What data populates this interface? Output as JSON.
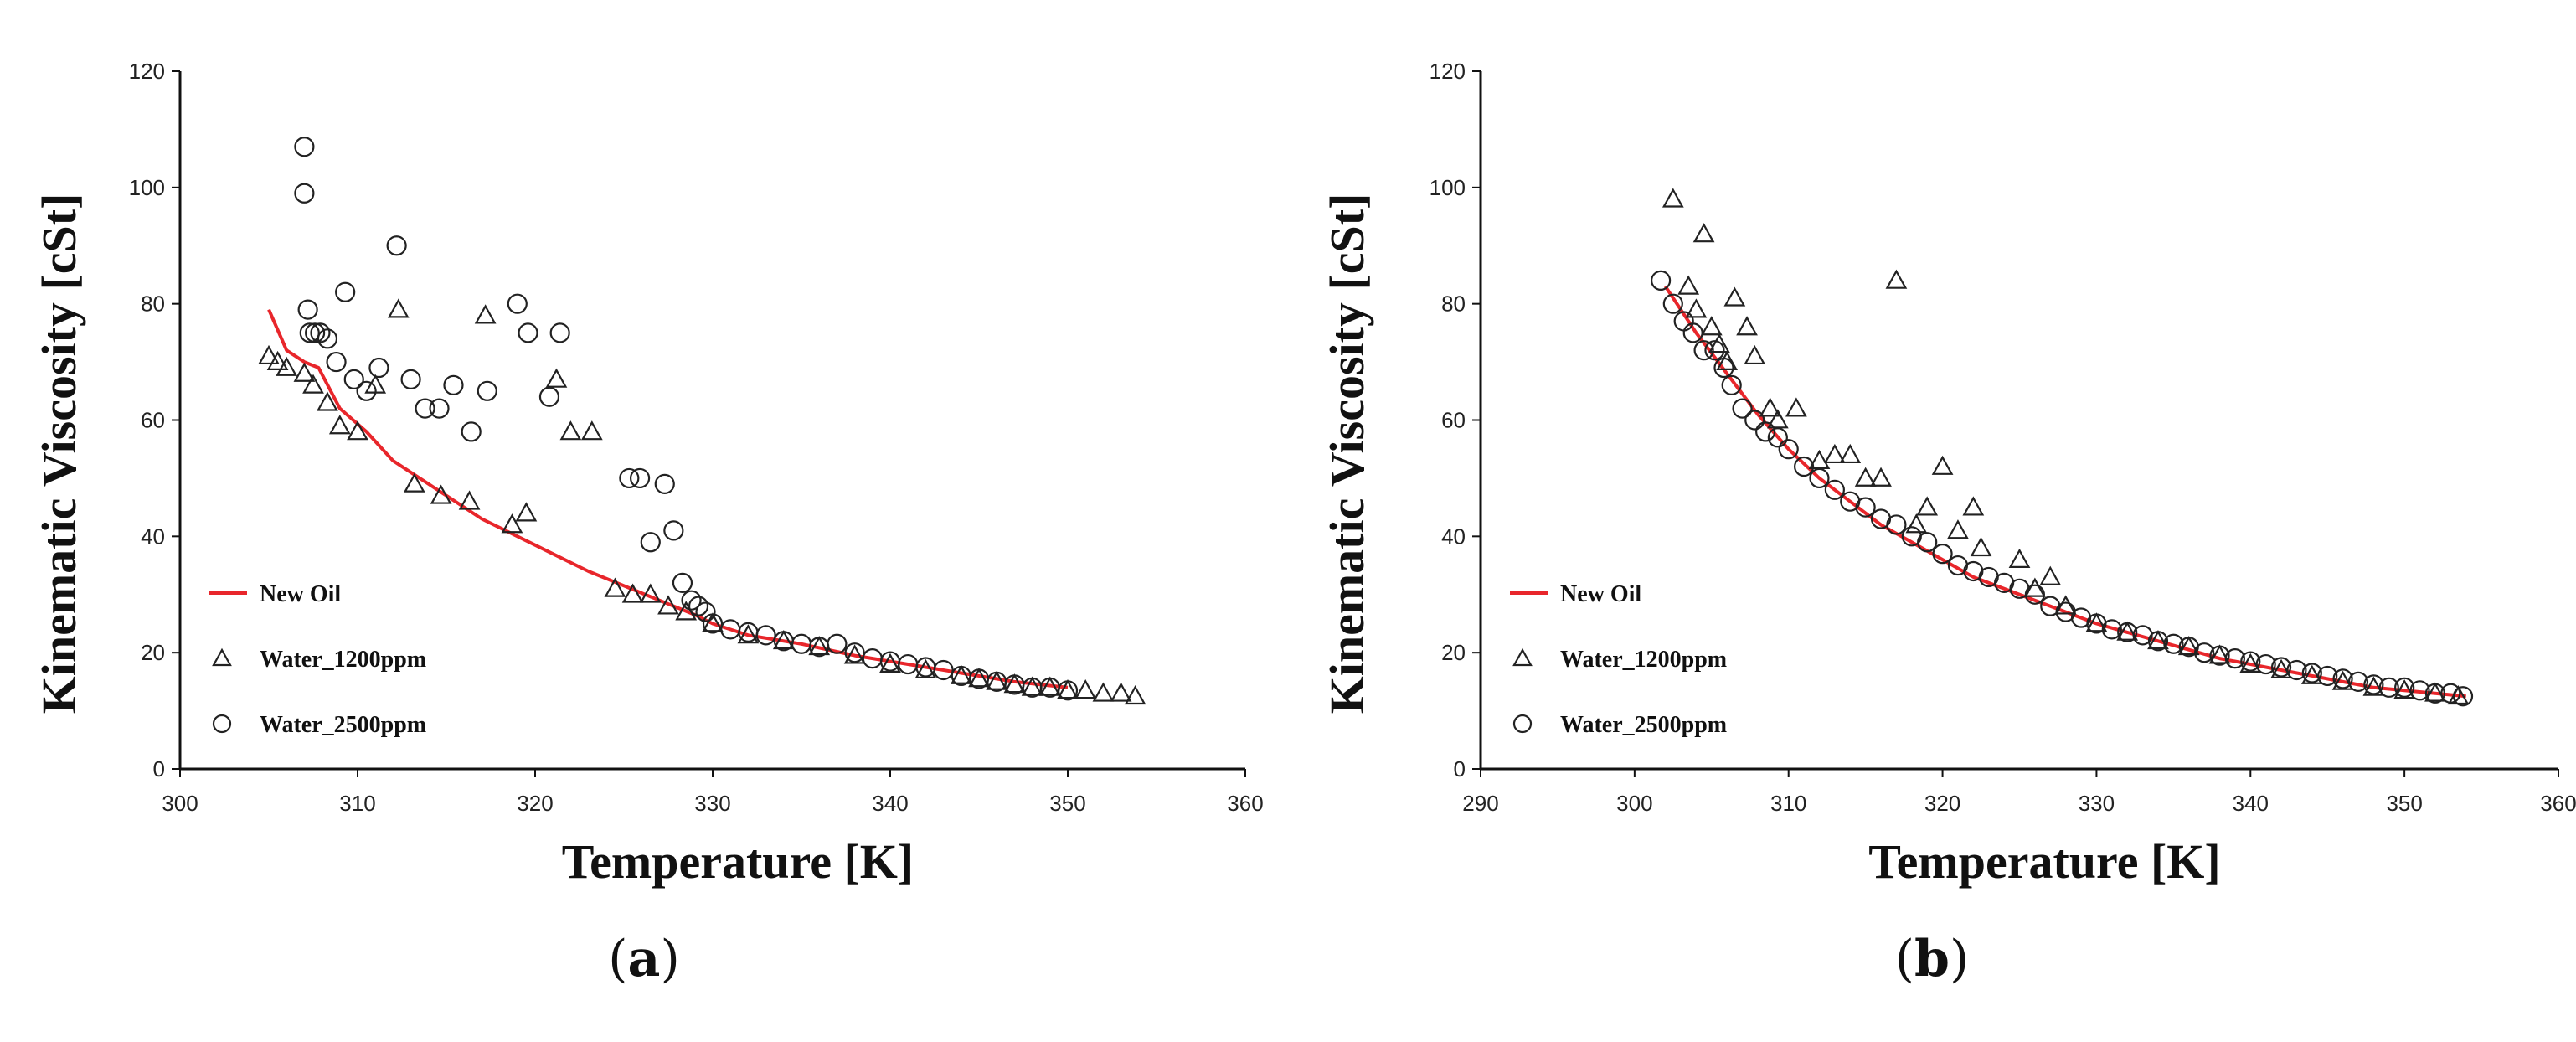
{
  "captions": {
    "a_letter": "a",
    "b_letter": "b",
    "open": "(",
    "close": ")"
  },
  "chart_data": [
    {
      "id": "a",
      "type": "scatter",
      "xlabel": "Temperature [K]",
      "ylabel": "Kinematic Viscosity [cSt]",
      "xlim": [
        300,
        360
      ],
      "ylim": [
        0,
        120
      ],
      "xticks": [
        "300",
        "310",
        "320",
        "330",
        "340",
        "350",
        "360"
      ],
      "yticks": [
        "0",
        "20",
        "40",
        "60",
        "80",
        "100",
        "120"
      ],
      "legend_position": "left-bottom",
      "series": [
        {
          "name": "New Oil",
          "marker": "line",
          "color": "#e8262b",
          "points": [
            [
              305.0,
              79
            ],
            [
              306.0,
              72
            ],
            [
              307.0,
              70
            ],
            [
              307.8,
              69
            ],
            [
              309,
              62
            ],
            [
              310.5,
              58
            ],
            [
              312,
              53
            ],
            [
              313.5,
              50
            ],
            [
              315,
              47
            ],
            [
              317,
              43
            ],
            [
              319,
              40
            ],
            [
              321,
              37
            ],
            [
              323,
              34
            ],
            [
              325,
              31.5
            ],
            [
              327,
              29
            ],
            [
              329,
              26.5
            ],
            [
              330,
              25
            ],
            [
              332,
              23
            ],
            [
              335,
              21.5
            ],
            [
              338,
              19.5
            ],
            [
              341,
              18
            ],
            [
              344,
              16.5
            ],
            [
              347,
              15
            ],
            [
              350,
              14
            ]
          ]
        },
        {
          "name": "Water_1200ppm",
          "marker": "triangle",
          "color": "#222222",
          "points": [
            [
              305,
              71
            ],
            [
              305.5,
              70
            ],
            [
              306,
              69
            ],
            [
              307,
              68
            ],
            [
              307.5,
              66
            ],
            [
              308.3,
              63
            ],
            [
              309,
              59
            ],
            [
              310,
              58
            ],
            [
              311,
              66
            ],
            [
              312.3,
              79
            ],
            [
              313.2,
              49
            ],
            [
              314.7,
              47
            ],
            [
              316.3,
              46
            ],
            [
              317.2,
              78
            ],
            [
              318.7,
              42
            ],
            [
              319.5,
              44
            ],
            [
              321.2,
              67
            ],
            [
              322,
              58
            ],
            [
              323.2,
              58
            ],
            [
              324.5,
              31
            ],
            [
              325.5,
              30
            ],
            [
              326.5,
              30
            ],
            [
              327.5,
              28
            ],
            [
              328.5,
              27
            ],
            [
              330,
              25
            ],
            [
              332,
              23
            ],
            [
              334,
              22
            ],
            [
              336,
              21
            ],
            [
              338,
              19.5
            ],
            [
              340,
              18
            ],
            [
              342,
              17
            ],
            [
              344,
              16
            ],
            [
              345,
              15.5
            ],
            [
              346,
              15
            ],
            [
              347,
              14.5
            ],
            [
              348,
              14
            ],
            [
              349,
              14
            ],
            [
              350,
              13.5
            ],
            [
              351,
              13.5
            ],
            [
              352,
              13
            ],
            [
              353,
              13
            ],
            [
              353.8,
              12.5
            ]
          ]
        },
        {
          "name": "Water_2500ppm",
          "marker": "circle",
          "color": "#222222",
          "points": [
            [
              307,
              107
            ],
            [
              307,
              99
            ],
            [
              307.2,
              79
            ],
            [
              307.3,
              75
            ],
            [
              307.6,
              75
            ],
            [
              307.9,
              75
            ],
            [
              308.3,
              74
            ],
            [
              308.8,
              70
            ],
            [
              309.3,
              82
            ],
            [
              309.8,
              67
            ],
            [
              310.5,
              65
            ],
            [
              311.2,
              69
            ],
            [
              312.2,
              90
            ],
            [
              313,
              67
            ],
            [
              313.8,
              62
            ],
            [
              314.6,
              62
            ],
            [
              315.4,
              66
            ],
            [
              316.4,
              58
            ],
            [
              317.3,
              65
            ],
            [
              319,
              80
            ],
            [
              319.6,
              75
            ],
            [
              320.8,
              64
            ],
            [
              321.4,
              75
            ],
            [
              325.3,
              50
            ],
            [
              325.9,
              50
            ],
            [
              326.5,
              39
            ],
            [
              327.3,
              49
            ],
            [
              327.8,
              41
            ],
            [
              328.3,
              32
            ],
            [
              328.8,
              29
            ],
            [
              329.2,
              28
            ],
            [
              329.6,
              27
            ],
            [
              330,
              25
            ],
            [
              331,
              24
            ],
            [
              332,
              23.5
            ],
            [
              333,
              23
            ],
            [
              334,
              22
            ],
            [
              335,
              21.5
            ],
            [
              336,
              21
            ],
            [
              337,
              21.5
            ],
            [
              338,
              20
            ],
            [
              339,
              19
            ],
            [
              340,
              18.5
            ],
            [
              341,
              18
            ],
            [
              342,
              17.5
            ],
            [
              343,
              17
            ],
            [
              344,
              16
            ],
            [
              345,
              15.5
            ],
            [
              346,
              15
            ],
            [
              347,
              14.5
            ],
            [
              348,
              14
            ],
            [
              349,
              14
            ],
            [
              350,
              13.5
            ]
          ]
        }
      ]
    },
    {
      "id": "b",
      "type": "scatter",
      "xlabel": "Temperature [K]",
      "ylabel": "Kinematic Viscosity [cSt]",
      "xlim": [
        290,
        360
      ],
      "ylim": [
        0,
        120
      ],
      "xticks": [
        "290",
        "300",
        "310",
        "320",
        "330",
        "340",
        "350",
        "360"
      ],
      "yticks": [
        "0",
        "20",
        "40",
        "60",
        "80",
        "100",
        "120"
      ],
      "legend_position": "left-bottom",
      "series": [
        {
          "name": "New Oil",
          "marker": "line",
          "color": "#e8262b",
          "points": [
            [
              302,
              83
            ],
            [
              304,
              75
            ],
            [
              306,
              68
            ],
            [
              308,
              61
            ],
            [
              310,
              55
            ],
            [
              312,
              50
            ],
            [
              314,
              46
            ],
            [
              316,
              42
            ],
            [
              318,
              39
            ],
            [
              320,
              36
            ],
            [
              322,
              33
            ],
            [
              324,
              31
            ],
            [
              326,
              29
            ],
            [
              328,
              27
            ],
            [
              330,
              25
            ],
            [
              332,
              23.5
            ],
            [
              334,
              22
            ],
            [
              336,
              20.5
            ],
            [
              338,
              19
            ],
            [
              340,
              18
            ],
            [
              342,
              17
            ],
            [
              344,
              16
            ],
            [
              346,
              15
            ],
            [
              348,
              14
            ],
            [
              350,
              13.5
            ],
            [
              352,
              13
            ],
            [
              354,
              12.5
            ]
          ]
        },
        {
          "name": "Water_1200ppm",
          "marker": "triangle",
          "color": "#222222",
          "points": [
            [
              302.5,
              98
            ],
            [
              303.5,
              83
            ],
            [
              304,
              79
            ],
            [
              304.5,
              92
            ],
            [
              305,
              76
            ],
            [
              305.5,
              73
            ],
            [
              306,
              70
            ],
            [
              306.5,
              81
            ],
            [
              307.3,
              76
            ],
            [
              307.8,
              71
            ],
            [
              308.8,
              62
            ],
            [
              309.3,
              60
            ],
            [
              310.5,
              62
            ],
            [
              312,
              53
            ],
            [
              313,
              54
            ],
            [
              314,
              54
            ],
            [
              315,
              50
            ],
            [
              316,
              50
            ],
            [
              317,
              84
            ],
            [
              318.3,
              42
            ],
            [
              319,
              45
            ],
            [
              320,
              52
            ],
            [
              321,
              41
            ],
            [
              322,
              45
            ],
            [
              322.5,
              38
            ],
            [
              325,
              36
            ],
            [
              326,
              31
            ],
            [
              327,
              33
            ],
            [
              328,
              28
            ],
            [
              330,
              25
            ],
            [
              332,
              23.5
            ],
            [
              334,
              22
            ],
            [
              336,
              21
            ],
            [
              338,
              19.5
            ],
            [
              340,
              18
            ],
            [
              342,
              17
            ],
            [
              344,
              16
            ],
            [
              346,
              15
            ],
            [
              348,
              14
            ],
            [
              350,
              13.5
            ],
            [
              352,
              13
            ],
            [
              353.5,
              12.5
            ]
          ]
        },
        {
          "name": "Water_2500ppm",
          "marker": "circle",
          "color": "#222222",
          "points": [
            [
              301.7,
              84
            ],
            [
              302.5,
              80
            ],
            [
              303.2,
              77
            ],
            [
              303.8,
              75
            ],
            [
              304.5,
              72
            ],
            [
              305.2,
              72
            ],
            [
              305.8,
              69
            ],
            [
              306.3,
              66
            ],
            [
              307,
              62
            ],
            [
              307.8,
              60
            ],
            [
              308.5,
              58
            ],
            [
              309.3,
              57
            ],
            [
              310,
              55
            ],
            [
              311,
              52
            ],
            [
              312,
              50
            ],
            [
              313,
              48
            ],
            [
              314,
              46
            ],
            [
              315,
              45
            ],
            [
              316,
              43
            ],
            [
              317,
              42
            ],
            [
              318,
              40
            ],
            [
              319,
              39
            ],
            [
              320,
              37
            ],
            [
              321,
              35
            ],
            [
              322,
              34
            ],
            [
              323,
              33
            ],
            [
              324,
              32
            ],
            [
              325,
              31
            ],
            [
              326,
              30
            ],
            [
              327,
              28
            ],
            [
              328,
              27
            ],
            [
              329,
              26
            ],
            [
              330,
              25
            ],
            [
              331,
              24
            ],
            [
              332,
              23.5
            ],
            [
              333,
              23
            ],
            [
              334,
              22
            ],
            [
              335,
              21.5
            ],
            [
              336,
              21
            ],
            [
              337,
              20
            ],
            [
              338,
              19.5
            ],
            [
              339,
              19
            ],
            [
              340,
              18.5
            ],
            [
              341,
              18
            ],
            [
              342,
              17.5
            ],
            [
              343,
              17
            ],
            [
              344,
              16.5
            ],
            [
              345,
              16
            ],
            [
              346,
              15.5
            ],
            [
              347,
              15
            ],
            [
              348,
              14.5
            ],
            [
              349,
              14
            ],
            [
              350,
              14
            ],
            [
              351,
              13.5
            ],
            [
              352,
              13
            ],
            [
              353,
              13
            ],
            [
              353.8,
              12.5
            ]
          ]
        }
      ]
    }
  ]
}
